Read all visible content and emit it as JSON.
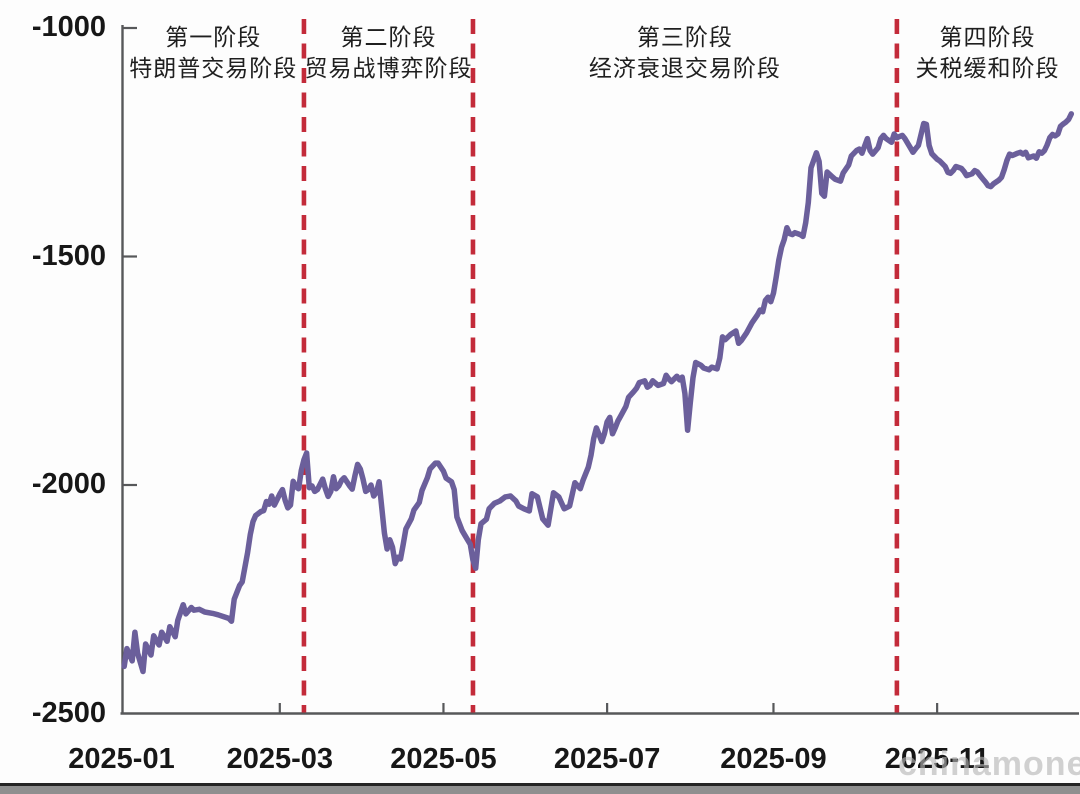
{
  "watermark": "chinamoney",
  "phases": [
    {
      "title": "第一阶段",
      "subtitle": "特朗普交易阶段"
    },
    {
      "title": "第二阶段",
      "subtitle": "贸易战博弈阶段"
    },
    {
      "title": "第三阶段",
      "subtitle": "经济衰退交易阶段"
    },
    {
      "title": "第四阶段",
      "subtitle": "关税缓和阶段"
    }
  ],
  "colors": {
    "line": "#6B5F9B",
    "phase_divider": "#c32b3a",
    "axis": "#57585a",
    "tick_text": "#171717",
    "phase_text": "#1f1f1f",
    "watermark": "#b5b5b5"
  },
  "chart_data": {
    "type": "line",
    "title": "",
    "grid": false,
    "legend": "none",
    "x_tick_labels": [
      "2025-01",
      "2025-03",
      "2025-05",
      "2025-07",
      "2025-09",
      "2025-11"
    ],
    "y_ticks": [
      -1000,
      -1500,
      -2000,
      -2500
    ],
    "y_tick_labels": [
      "-1000",
      "-1500",
      "-2000",
      "-2500"
    ],
    "ylim": [
      -2500,
      -1000
    ],
    "x_range": [
      "2025-01-02",
      "2025-12-21"
    ],
    "phase_dividers": [
      "03-10",
      "05-12",
      "10-17"
    ],
    "series": [
      {
        "color": "#6B5F9B",
        "points": [
          [
            "01-02",
            -2397
          ],
          [
            "01-03",
            -2358
          ],
          [
            "01-05",
            -2385
          ],
          [
            "01-06",
            -2322
          ],
          [
            "01-07",
            -2368
          ],
          [
            "01-09",
            -2408
          ],
          [
            "01-10",
            -2348
          ],
          [
            "01-12",
            -2372
          ],
          [
            "01-13",
            -2330
          ],
          [
            "01-15",
            -2350
          ],
          [
            "01-16",
            -2322
          ],
          [
            "01-18",
            -2342
          ],
          [
            "01-19",
            -2310
          ],
          [
            "01-21",
            -2332
          ],
          [
            "01-22",
            -2296
          ],
          [
            "01-24",
            -2262
          ],
          [
            "01-25",
            -2282
          ],
          [
            "01-27",
            -2268
          ],
          [
            "01-28",
            -2274
          ],
          [
            "01-30",
            -2272
          ],
          [
            "02-01",
            -2278
          ],
          [
            "02-04",
            -2281
          ],
          [
            "02-06",
            -2284
          ],
          [
            "02-08",
            -2288
          ],
          [
            "02-10",
            -2292
          ],
          [
            "02-11",
            -2298
          ],
          [
            "02-12",
            -2250
          ],
          [
            "02-14",
            -2220
          ],
          [
            "02-15",
            -2212
          ],
          [
            "02-16",
            -2180
          ],
          [
            "02-17",
            -2148
          ],
          [
            "02-18",
            -2108
          ],
          [
            "02-19",
            -2080
          ],
          [
            "02-20",
            -2067
          ],
          [
            "02-22",
            -2058
          ],
          [
            "02-23",
            -2056
          ],
          [
            "02-24",
            -2036
          ],
          [
            "02-25",
            -2042
          ],
          [
            "02-26",
            -2024
          ],
          [
            "02-27",
            -2044
          ],
          [
            "03-01",
            -2020
          ],
          [
            "03-02",
            -2010
          ],
          [
            "03-03",
            -2034
          ],
          [
            "03-04",
            -2050
          ],
          [
            "03-05",
            -2044
          ],
          [
            "03-06",
            -1992
          ],
          [
            "03-07",
            -2004
          ],
          [
            "03-08",
            -2008
          ],
          [
            "03-09",
            -1968
          ],
          [
            "03-10",
            -1945
          ],
          [
            "03-11",
            -1930
          ],
          [
            "03-12",
            -2006
          ],
          [
            "03-13",
            -2002
          ],
          [
            "03-14",
            -2014
          ],
          [
            "03-15",
            -2010
          ],
          [
            "03-17",
            -1987
          ],
          [
            "03-18",
            -2008
          ],
          [
            "03-19",
            -2025
          ],
          [
            "03-20",
            -2014
          ],
          [
            "03-21",
            -1982
          ],
          [
            "03-22",
            -2008
          ],
          [
            "03-23",
            -2002
          ],
          [
            "03-24",
            -1990
          ],
          [
            "03-25",
            -1984
          ],
          [
            "03-27",
            -2002
          ],
          [
            "03-28",
            -2009
          ],
          [
            "03-29",
            -1980
          ],
          [
            "03-30",
            -1955
          ],
          [
            "03-31",
            -1965
          ],
          [
            "04-01",
            -1987
          ],
          [
            "04-02",
            -2014
          ],
          [
            "04-03",
            -2010
          ],
          [
            "04-04",
            -2000
          ],
          [
            "04-05",
            -2024
          ],
          [
            "04-06",
            -2016
          ],
          [
            "04-07",
            -1993
          ],
          [
            "04-09",
            -2105
          ],
          [
            "04-10",
            -2140
          ],
          [
            "04-11",
            -2120
          ],
          [
            "04-12",
            -2136
          ],
          [
            "04-13",
            -2172
          ],
          [
            "04-14",
            -2158
          ],
          [
            "04-15",
            -2162
          ],
          [
            "04-16",
            -2130
          ],
          [
            "04-17",
            -2096
          ],
          [
            "04-19",
            -2074
          ],
          [
            "04-20",
            -2055
          ],
          [
            "04-22",
            -2038
          ],
          [
            "04-23",
            -2012
          ],
          [
            "04-25",
            -1984
          ],
          [
            "04-26",
            -1965
          ],
          [
            "04-28",
            -1952
          ],
          [
            "04-29",
            -1952
          ],
          [
            "05-01",
            -1970
          ],
          [
            "05-02",
            -1985
          ],
          [
            "05-04",
            -1993
          ],
          [
            "05-05",
            -2010
          ],
          [
            "05-06",
            -2070
          ],
          [
            "05-08",
            -2100
          ],
          [
            "05-09",
            -2110
          ],
          [
            "05-11",
            -2130
          ],
          [
            "05-12",
            -2165
          ],
          [
            "05-13",
            -2182
          ],
          [
            "05-14",
            -2120
          ],
          [
            "05-15",
            -2085
          ],
          [
            "05-17",
            -2075
          ],
          [
            "05-18",
            -2052
          ],
          [
            "05-20",
            -2040
          ],
          [
            "05-22",
            -2035
          ],
          [
            "05-24",
            -2026
          ],
          [
            "05-26",
            -2024
          ],
          [
            "05-28",
            -2035
          ],
          [
            "05-29",
            -2046
          ],
          [
            "05-31",
            -2052
          ],
          [
            "06-02",
            -2057
          ],
          [
            "06-03",
            -2019
          ],
          [
            "06-05",
            -2026
          ],
          [
            "06-07",
            -2074
          ],
          [
            "06-09",
            -2088
          ],
          [
            "06-11",
            -2017
          ],
          [
            "06-13",
            -2026
          ],
          [
            "06-15",
            -2052
          ],
          [
            "06-17",
            -2046
          ],
          [
            "06-19",
            -1995
          ],
          [
            "06-21",
            -2008
          ],
          [
            "06-22",
            -1990
          ],
          [
            "06-24",
            -1961
          ],
          [
            "06-25",
            -1935
          ],
          [
            "06-26",
            -1898
          ],
          [
            "06-27",
            -1875
          ],
          [
            "06-28",
            -1890
          ],
          [
            "06-29",
            -1905
          ],
          [
            "06-30",
            -1888
          ],
          [
            "07-01",
            -1862
          ],
          [
            "07-02",
            -1852
          ],
          [
            "07-03",
            -1888
          ],
          [
            "07-04",
            -1875
          ],
          [
            "07-05",
            -1860
          ],
          [
            "07-06",
            -1850
          ],
          [
            "07-08",
            -1828
          ],
          [
            "07-09",
            -1808
          ],
          [
            "07-11",
            -1795
          ],
          [
            "07-12",
            -1788
          ],
          [
            "07-13",
            -1776
          ],
          [
            "07-15",
            -1772
          ],
          [
            "07-16",
            -1786
          ],
          [
            "07-17",
            -1782
          ],
          [
            "07-18",
            -1772
          ],
          [
            "07-20",
            -1782
          ],
          [
            "07-22",
            -1778
          ],
          [
            "07-23",
            -1760
          ],
          [
            "07-24",
            -1768
          ],
          [
            "07-25",
            -1774
          ],
          [
            "07-27",
            -1762
          ],
          [
            "07-28",
            -1770
          ],
          [
            "07-29",
            -1764
          ],
          [
            "07-30",
            -1800
          ],
          [
            "07-31",
            -1880
          ],
          [
            "08-01",
            -1820
          ],
          [
            "08-02",
            -1765
          ],
          [
            "08-03",
            -1732
          ],
          [
            "08-05",
            -1738
          ],
          [
            "08-06",
            -1744
          ],
          [
            "08-08",
            -1748
          ],
          [
            "08-09",
            -1742
          ],
          [
            "08-11",
            -1746
          ],
          [
            "08-12",
            -1722
          ],
          [
            "08-13",
            -1676
          ],
          [
            "08-14",
            -1682
          ],
          [
            "08-16",
            -1671
          ],
          [
            "08-17",
            -1667
          ],
          [
            "08-18",
            -1663
          ],
          [
            "08-19",
            -1690
          ],
          [
            "08-20",
            -1684
          ],
          [
            "08-22",
            -1667
          ],
          [
            "08-23",
            -1656
          ],
          [
            "08-24",
            -1645
          ],
          [
            "08-26",
            -1628
          ],
          [
            "08-27",
            -1617
          ],
          [
            "08-28",
            -1621
          ],
          [
            "08-29",
            -1596
          ],
          [
            "08-30",
            -1589
          ],
          [
            "08-31",
            -1599
          ],
          [
            "09-01",
            -1580
          ],
          [
            "09-02",
            -1545
          ],
          [
            "09-03",
            -1508
          ],
          [
            "09-04",
            -1480
          ],
          [
            "09-05",
            -1463
          ],
          [
            "09-06",
            -1437
          ],
          [
            "09-07",
            -1450
          ],
          [
            "09-08",
            -1452
          ],
          [
            "09-09",
            -1448
          ],
          [
            "09-11",
            -1452
          ],
          [
            "09-12",
            -1456
          ],
          [
            "09-13",
            -1426
          ],
          [
            "09-14",
            -1382
          ],
          [
            "09-15",
            -1306
          ],
          [
            "09-17",
            -1273
          ],
          [
            "09-18",
            -1292
          ],
          [
            "09-19",
            -1362
          ],
          [
            "09-20",
            -1368
          ],
          [
            "09-21",
            -1315
          ],
          [
            "09-23",
            -1326
          ],
          [
            "09-24",
            -1331
          ],
          [
            "09-26",
            -1335
          ],
          [
            "09-27",
            -1317
          ],
          [
            "09-29",
            -1300
          ],
          [
            "09-30",
            -1280
          ],
          [
            "10-02",
            -1268
          ],
          [
            "10-03",
            -1265
          ],
          [
            "10-04",
            -1274
          ],
          [
            "10-06",
            -1242
          ],
          [
            "10-07",
            -1268
          ],
          [
            "10-08",
            -1276
          ],
          [
            "10-10",
            -1262
          ],
          [
            "10-11",
            -1242
          ],
          [
            "10-12",
            -1235
          ],
          [
            "10-13",
            -1242
          ],
          [
            "10-15",
            -1250
          ],
          [
            "10-16",
            -1232
          ],
          [
            "10-17",
            -1240
          ],
          [
            "10-19",
            -1235
          ],
          [
            "10-20",
            -1242
          ],
          [
            "10-22",
            -1262
          ],
          [
            "10-23",
            -1272
          ],
          [
            "10-24",
            -1264
          ],
          [
            "10-25",
            -1257
          ],
          [
            "10-27",
            -1209
          ],
          [
            "10-28",
            -1211
          ],
          [
            "10-29",
            -1257
          ],
          [
            "10-30",
            -1275
          ],
          [
            "11-01",
            -1287
          ],
          [
            "11-02",
            -1291
          ],
          [
            "11-04",
            -1303
          ],
          [
            "11-05",
            -1316
          ],
          [
            "11-06",
            -1318
          ],
          [
            "11-07",
            -1312
          ],
          [
            "11-08",
            -1303
          ],
          [
            "11-10",
            -1307
          ],
          [
            "11-11",
            -1314
          ],
          [
            "11-12",
            -1323
          ],
          [
            "11-14",
            -1319
          ],
          [
            "11-15",
            -1312
          ],
          [
            "11-16",
            -1315
          ],
          [
            "11-17",
            -1323
          ],
          [
            "11-18",
            -1330
          ],
          [
            "11-19",
            -1337
          ],
          [
            "11-20",
            -1345
          ],
          [
            "11-21",
            -1347
          ],
          [
            "11-22",
            -1341
          ],
          [
            "11-24",
            -1333
          ],
          [
            "11-25",
            -1327
          ],
          [
            "11-26",
            -1310
          ],
          [
            "11-27",
            -1290
          ],
          [
            "11-28",
            -1276
          ],
          [
            "11-29",
            -1279
          ],
          [
            "12-01",
            -1274
          ],
          [
            "12-02",
            -1272
          ],
          [
            "12-03",
            -1276
          ],
          [
            "12-04",
            -1272
          ],
          [
            "12-05",
            -1284
          ],
          [
            "12-07",
            -1280
          ],
          [
            "12-08",
            -1285
          ],
          [
            "12-09",
            -1271
          ],
          [
            "12-10",
            -1274
          ],
          [
            "12-11",
            -1268
          ],
          [
            "12-12",
            -1256
          ],
          [
            "12-13",
            -1240
          ],
          [
            "12-14",
            -1233
          ],
          [
            "12-15",
            -1236
          ],
          [
            "12-16",
            -1232
          ],
          [
            "12-17",
            -1215
          ],
          [
            "12-18",
            -1210
          ],
          [
            "12-19",
            -1206
          ],
          [
            "12-20",
            -1200
          ],
          [
            "12-21",
            -1188
          ]
        ]
      }
    ]
  }
}
